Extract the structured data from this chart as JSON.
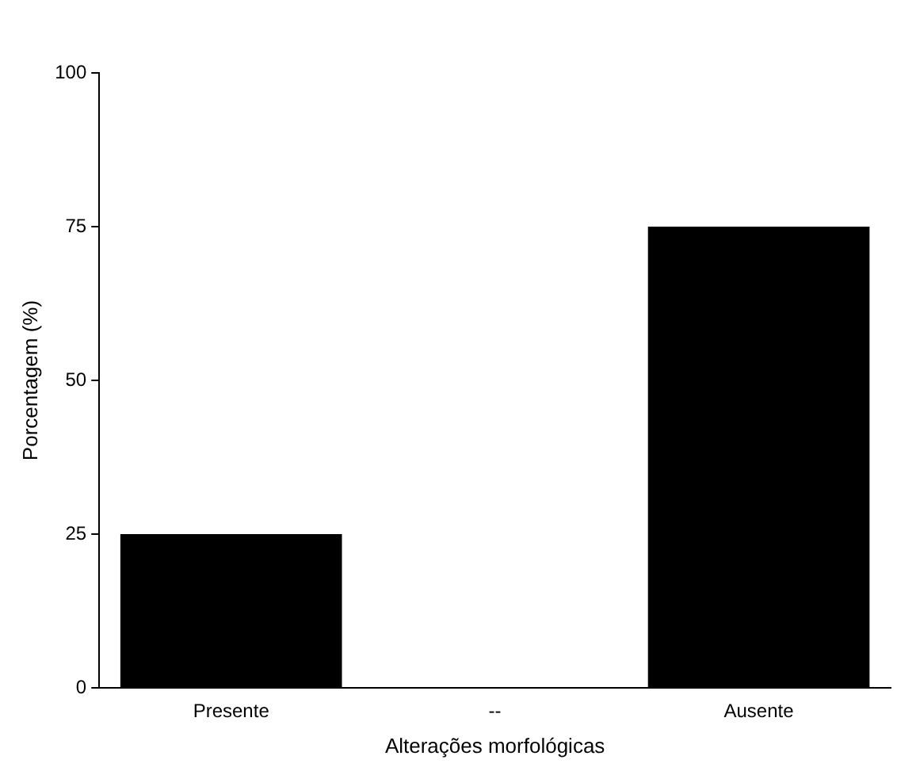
{
  "chart_data": {
    "type": "bar",
    "xlabel": "Alterações morfológicas",
    "ylabel": "Porcentagem (%)",
    "categories": [
      "Presente",
      "--",
      "Ausente"
    ],
    "values": [
      25,
      null,
      75
    ],
    "color": "#000000",
    "ylim": [
      0,
      100
    ],
    "yticks": [
      0,
      25,
      50,
      75,
      100
    ],
    "grid": false,
    "legend": false
  }
}
